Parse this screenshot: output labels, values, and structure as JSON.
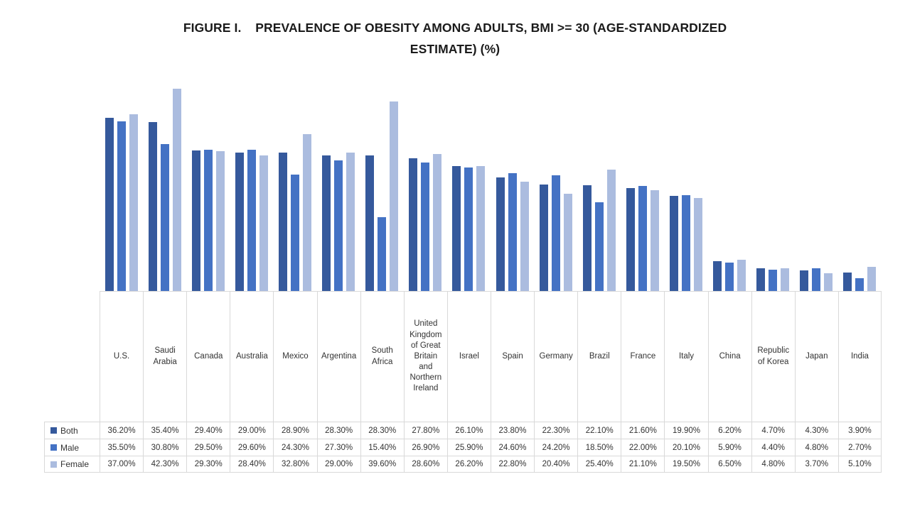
{
  "chart_data": {
    "type": "bar",
    "title": "FIGURE I.  PREVALENCE OF OBESITY AMONG ADULTS, BMI >= 30 (AGE-STANDARDIZED ESTIMATE) (%)",
    "title_lines": [
      "FIGURE I.    PREVALENCE OF OBESITY AMONG ADULTS, BMI >= 30 (AGE-STANDARDIZED",
      "ESTIMATE) (%)"
    ],
    "categories": [
      "U.S.",
      "Saudi Arabia",
      "Canada",
      "Australia",
      "Mexico",
      "Argentina",
      "South Africa",
      "United Kingdom of Great Britain and Northern Ireland",
      "Israel",
      "Spain",
      "Germany",
      "Brazil",
      "France",
      "Italy",
      "China",
      "Republic of Korea",
      "Japan",
      "India"
    ],
    "series": [
      {
        "name": "Both",
        "color": "#35599C",
        "values": [
          36.2,
          35.4,
          29.4,
          29.0,
          28.9,
          28.3,
          28.3,
          27.8,
          26.1,
          23.8,
          22.3,
          22.1,
          21.6,
          19.9,
          6.2,
          4.7,
          4.3,
          3.9
        ],
        "labels": [
          "36.20%",
          "35.40%",
          "29.40%",
          "29.00%",
          "28.90%",
          "28.30%",
          "28.30%",
          "27.80%",
          "26.10%",
          "23.80%",
          "22.30%",
          "22.10%",
          "21.60%",
          "19.90%",
          "6.20%",
          "4.70%",
          "4.30%",
          "3.90%"
        ]
      },
      {
        "name": "Male",
        "color": "#4472C4",
        "values": [
          35.5,
          30.8,
          29.5,
          29.6,
          24.3,
          27.3,
          15.4,
          26.9,
          25.9,
          24.6,
          24.2,
          18.5,
          22.0,
          20.1,
          5.9,
          4.4,
          4.8,
          2.7
        ],
        "labels": [
          "35.50%",
          "30.80%",
          "29.50%",
          "29.60%",
          "24.30%",
          "27.30%",
          "15.40%",
          "26.90%",
          "25.90%",
          "24.60%",
          "24.20%",
          "18.50%",
          "22.00%",
          "20.10%",
          "5.90%",
          "4.40%",
          "4.80%",
          "2.70%"
        ]
      },
      {
        "name": "Female",
        "color": "#ABBCDF",
        "values": [
          37.0,
          42.3,
          29.3,
          28.4,
          32.8,
          29.0,
          39.6,
          28.6,
          26.2,
          22.8,
          20.4,
          25.4,
          21.1,
          19.5,
          6.5,
          4.8,
          3.7,
          5.1
        ],
        "labels": [
          "37.00%",
          "42.30%",
          "29.30%",
          "28.40%",
          "32.80%",
          "29.00%",
          "39.60%",
          "28.60%",
          "26.20%",
          "22.80%",
          "20.40%",
          "25.40%",
          "21.10%",
          "19.50%",
          "6.50%",
          "4.80%",
          "3.70%",
          "5.10%"
        ]
      }
    ],
    "ylim": [
      0,
      45
    ],
    "grid": false,
    "legend_position": "data-table-left",
    "value_format": "0.00%",
    "xlabel": "",
    "ylabel": ""
  },
  "colors": {
    "border": "#D9D9D9",
    "text": "#333333",
    "title": "#1B1B1B",
    "background": "#FFFFFF"
  }
}
